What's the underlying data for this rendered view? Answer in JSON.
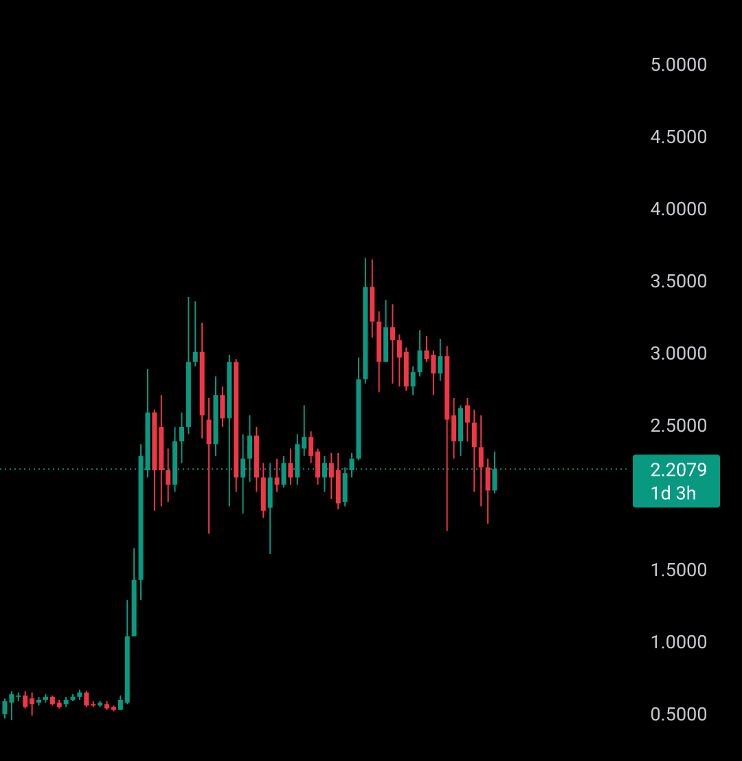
{
  "chart_data": {
    "type": "candlestick",
    "up_color": "#089981",
    "down_color": "#f23645",
    "ylim": [
      0.186,
      5.457
    ],
    "yticks": [
      {
        "value": 0.5,
        "label": "0.5000"
      },
      {
        "value": 1,
        "label": "1.0000"
      },
      {
        "value": 1.5,
        "label": "1.5000"
      },
      {
        "value": 2.5,
        "label": "2.5000"
      },
      {
        "value": 3,
        "label": "3.0000"
      },
      {
        "value": 3.5,
        "label": "3.5000"
      },
      {
        "value": 4,
        "label": "4.0000"
      },
      {
        "value": 4.5,
        "label": "4.5000"
      },
      {
        "value": 5,
        "label": "5.0000"
      }
    ],
    "current_price": 2.2079,
    "countdown": "1d 3h",
    "open": [
      0.51,
      0.59,
      0.63,
      0.64,
      0.62,
      0.59,
      0.61,
      0.63,
      0.59,
      0.58,
      0.61,
      0.63,
      0.66,
      0.58,
      0.57,
      0.58,
      0.56,
      0.54,
      0.59,
      1.05,
      1.44,
      2.2,
      2.6,
      2.5,
      2.2,
      2.1,
      2.4,
      2.5,
      2.95,
      3.02,
      2.55,
      2.38,
      2.72,
      2.56,
      2.95,
      2.15,
      2.28,
      2.44,
      2.15,
      1.94,
      2.15,
      2.1,
      2.25,
      2.15,
      2.35,
      2.43,
      2.33,
      2.15,
      2.25,
      2.2,
      1.98,
      2.2,
      2.28,
      2.83,
      3.47,
      3.23,
      2.95,
      3.19,
      3.1,
      3.02,
      2.78,
      2.88,
      3.03,
      3.0,
      2.87,
      2.99,
      2.58,
      2.4,
      2.65,
      2.53,
      2.36,
      2.22,
      2.06
    ],
    "high": [
      0.62,
      0.67,
      0.66,
      0.67,
      0.66,
      0.63,
      0.65,
      0.64,
      0.61,
      0.63,
      0.65,
      0.68,
      0.67,
      0.6,
      0.6,
      0.6,
      0.57,
      0.64,
      1.3,
      1.66,
      2.38,
      2.9,
      2.62,
      2.72,
      2.35,
      2.5,
      2.6,
      3.4,
      3.37,
      3.22,
      2.7,
      2.85,
      2.78,
      3.0,
      2.97,
      2.45,
      2.58,
      2.5,
      2.25,
      2.25,
      2.28,
      2.3,
      2.35,
      2.45,
      2.65,
      2.47,
      2.35,
      2.3,
      2.32,
      2.32,
      2.22,
      2.32,
      2.98,
      3.67,
      3.66,
      3.3,
      3.38,
      3.35,
      3.14,
      3.05,
      2.92,
      3.17,
      3.13,
      3.03,
      3.11,
      3.06,
      2.7,
      2.65,
      2.7,
      2.62,
      2.58,
      2.28,
      2.33
    ],
    "low": [
      0.48,
      0.47,
      0.6,
      0.55,
      0.5,
      0.57,
      0.59,
      0.57,
      0.55,
      0.56,
      0.6,
      0.61,
      0.56,
      0.56,
      0.56,
      0.54,
      0.53,
      0.54,
      0.58,
      1.05,
      1.3,
      2.15,
      1.92,
      1.95,
      1.98,
      2.05,
      2.25,
      2.45,
      2.92,
      2.42,
      1.76,
      2.3,
      2.5,
      1.95,
      2.05,
      1.9,
      2.12,
      2.05,
      1.87,
      1.62,
      2.05,
      2.08,
      2.1,
      2.1,
      2.3,
      2.25,
      2.1,
      2.05,
      2.0,
      1.93,
      1.95,
      2.15,
      2.27,
      2.8,
      3.12,
      2.74,
      2.95,
      2.8,
      2.78,
      2.75,
      2.72,
      2.85,
      2.95,
      2.72,
      2.82,
      1.78,
      2.28,
      2.3,
      2.4,
      2.05,
      1.95,
      1.83,
      2.04
    ],
    "close": [
      0.6,
      0.65,
      0.64,
      0.56,
      0.58,
      0.61,
      0.63,
      0.58,
      0.56,
      0.61,
      0.63,
      0.66,
      0.57,
      0.57,
      0.59,
      0.55,
      0.54,
      0.61,
      1.05,
      1.44,
      2.3,
      2.6,
      2.2,
      2.2,
      2.1,
      2.4,
      2.5,
      2.95,
      3.02,
      2.58,
      2.38,
      2.72,
      2.56,
      2.95,
      2.15,
      2.28,
      2.44,
      2.15,
      1.92,
      2.15,
      2.1,
      2.25,
      2.15,
      2.38,
      2.43,
      2.3,
      2.15,
      2.25,
      2.15,
      1.97,
      2.18,
      2.28,
      2.83,
      3.47,
      3.23,
      2.95,
      3.19,
      3.1,
      2.98,
      2.78,
      2.88,
      3.03,
      2.97,
      2.87,
      2.99,
      2.55,
      2.4,
      2.63,
      2.53,
      2.36,
      2.22,
      2.06,
      2.2079
    ]
  }
}
